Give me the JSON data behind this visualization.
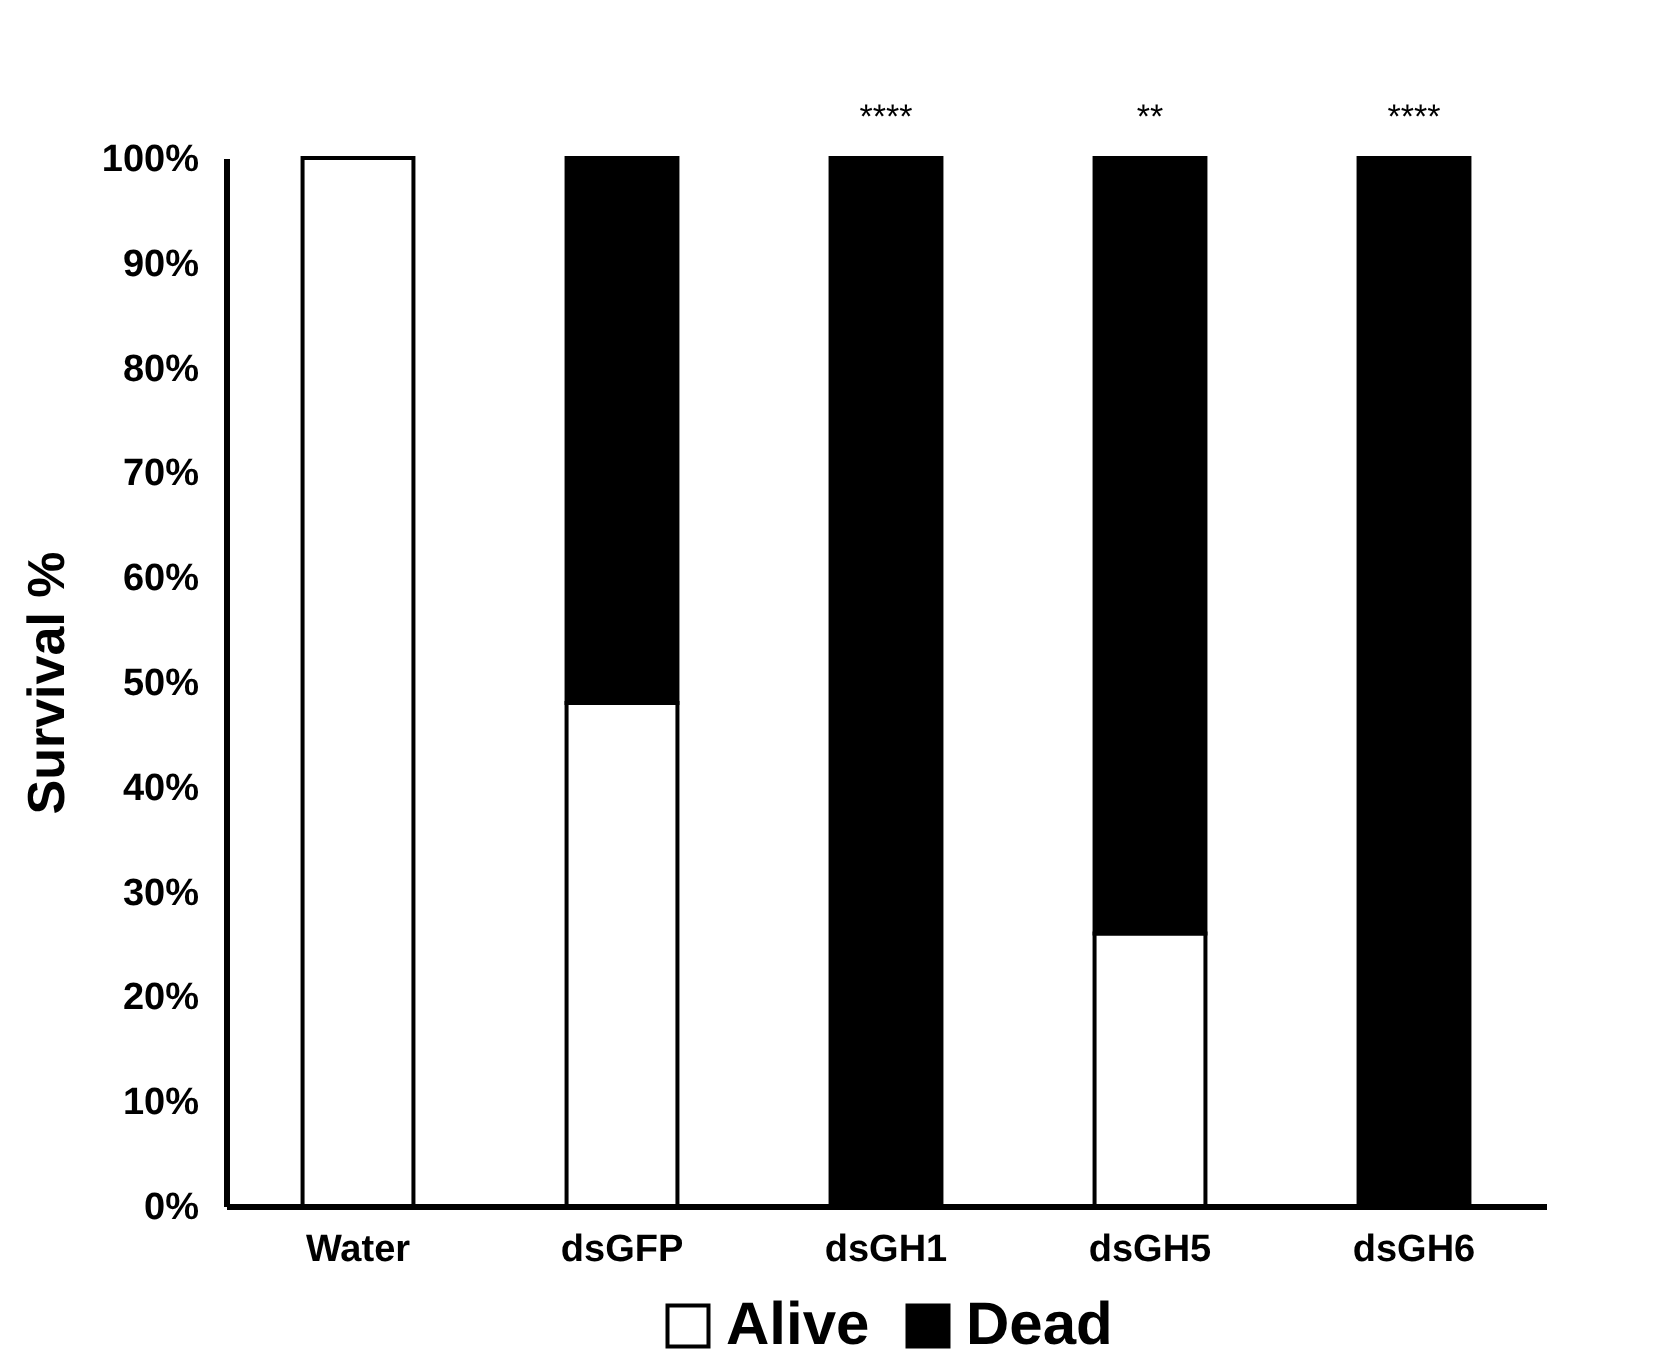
{
  "chart_data": {
    "type": "bar",
    "stacked": true,
    "ylabel": "Survival %",
    "categories": [
      "Water",
      "dsGFP",
      "dsGH1",
      "dsGH5",
      "dsGH6"
    ],
    "series": [
      {
        "name": "Alive",
        "color": "#ffffff",
        "values": [
          100,
          48,
          0,
          26,
          0
        ]
      },
      {
        "name": "Dead",
        "color": "#000000",
        "values": [
          0,
          52,
          100,
          74,
          100
        ]
      }
    ],
    "ylim": [
      0,
      100
    ],
    "yticks": [
      {
        "value": 0,
        "label": "0%"
      },
      {
        "value": 10,
        "label": "10%"
      },
      {
        "value": 20,
        "label": "20%"
      },
      {
        "value": 30,
        "label": "30%"
      },
      {
        "value": 40,
        "label": "40%"
      },
      {
        "value": 50,
        "label": "50%"
      },
      {
        "value": 60,
        "label": "60%"
      },
      {
        "value": 70,
        "label": "70%"
      },
      {
        "value": 80,
        "label": "80%"
      },
      {
        "value": 90,
        "label": "90%"
      },
      {
        "value": 100,
        "label": "100%"
      }
    ],
    "grid": false,
    "legend": "bottom",
    "annotations": [
      {
        "text": "****",
        "x": "dsGH1",
        "y": 100
      },
      {
        "text": "**",
        "x": "dsGH5",
        "y": 100
      },
      {
        "text": "****",
        "x": "dsGH6",
        "y": 100
      }
    ]
  }
}
